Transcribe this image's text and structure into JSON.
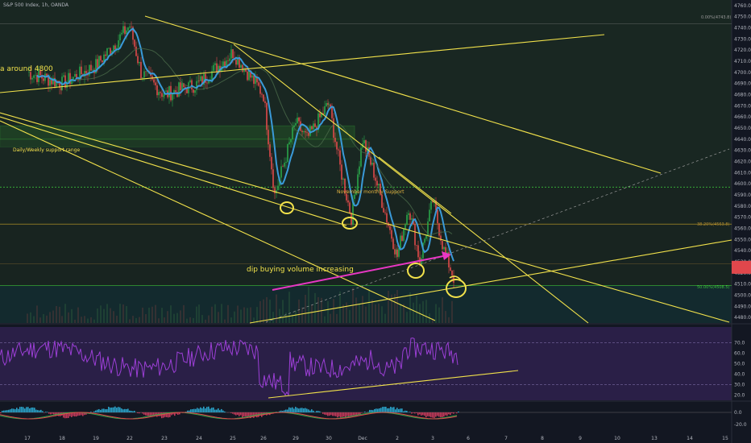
{
  "header": {
    "title": "S&P 500 Index, 1h, OANDA"
  },
  "colors": {
    "background": "#131722",
    "upper_zone": "#1b2a22",
    "lower_zone": "#132a2e",
    "rsi_zone": "#2a1f47",
    "macd_zone": "#131722",
    "candle_up": "#e04a4a",
    "candle_down": "#2aa64a",
    "ma_line": "#3a9ad9",
    "trend_line": "#f2e24b",
    "arrow": "#e837c4",
    "level_green": "#3bbf3b",
    "level_gold": "#c9a227",
    "price_tag": "#e0474c",
    "rsi_line": "#9c3fd6"
  },
  "annotations": {
    "partial_left": "a around 4800",
    "support_range": "Daily/Weekly support range",
    "nov_support": "November monthly Support",
    "dip_buying": "dip buying volume increasing",
    "fib_0": "0.00%(4743.8)",
    "fib_38": "38.20%(4563.8)",
    "fib_50": "50.00%(4508.5)"
  },
  "chart_data": [
    {
      "type": "candlestick",
      "title": "S&P 500 Index, 1h, OANDA",
      "ylim": [
        4475,
        4765
      ],
      "y_ticks": [
        4760.0,
        4750.0,
        4740.0,
        4730.0,
        4720.0,
        4710.0,
        4700.0,
        4690.0,
        4680.0,
        4670.0,
        4660.0,
        4650.0,
        4640.0,
        4630.0,
        4620.0,
        4610.0,
        4600.0,
        4590.0,
        4580.0,
        4570.0,
        4560.0,
        4550.0,
        4540.0,
        4530.0,
        4520.0,
        4510.0,
        4500.0,
        4490.0,
        4480.0
      ],
      "x_ticks": [
        "17",
        "18",
        "19",
        "22",
        "23",
        "24",
        "25",
        "26",
        "29",
        "30",
        "Dec",
        "2",
        "3",
        "6",
        "7",
        "8",
        "9",
        "10",
        "13",
        "14",
        "15"
      ],
      "price_path": [
        [
          "17",
          4700
        ],
        [
          "18",
          4690
        ],
        [
          "19",
          4706
        ],
        [
          "22",
          4742
        ],
        [
          "22",
          4700
        ],
        [
          "23",
          4680
        ],
        [
          "24",
          4690
        ],
        [
          "25",
          4718
        ],
        [
          "26",
          4680
        ],
        [
          "26",
          4590
        ],
        [
          "29",
          4655
        ],
        [
          "29",
          4640
        ],
        [
          "30",
          4672
        ],
        [
          "30",
          4615
        ],
        [
          "30",
          4570
        ],
        [
          "Dec",
          4640
        ],
        [
          "Dec",
          4610
        ],
        [
          "2",
          4535
        ],
        [
          "2",
          4580
        ],
        [
          "2",
          4530
        ],
        [
          "3",
          4585
        ],
        [
          "3",
          4540
        ],
        [
          "3",
          4512
        ]
      ],
      "levels": [
        {
          "label": "0.00%(4743.8)",
          "value": 4743.8
        },
        {
          "label": "November monthly Support",
          "value": 4597
        },
        {
          "label": "38.20%(4563.8)",
          "value": 4563.8
        },
        {
          "label": "50.00%(4508.5)",
          "value": 4508.5
        }
      ],
      "price_tag": {
        "value": 4525
      }
    },
    {
      "type": "line",
      "name": "RSI",
      "ylim": [
        15,
        85
      ],
      "y_ticks": [
        70.0,
        60.0,
        50.0,
        40.0,
        30.0,
        20.0
      ],
      "bands": [
        70,
        30
      ]
    },
    {
      "type": "bar",
      "name": "MACD",
      "y_ticks": [
        0.0,
        -20.0
      ]
    }
  ]
}
